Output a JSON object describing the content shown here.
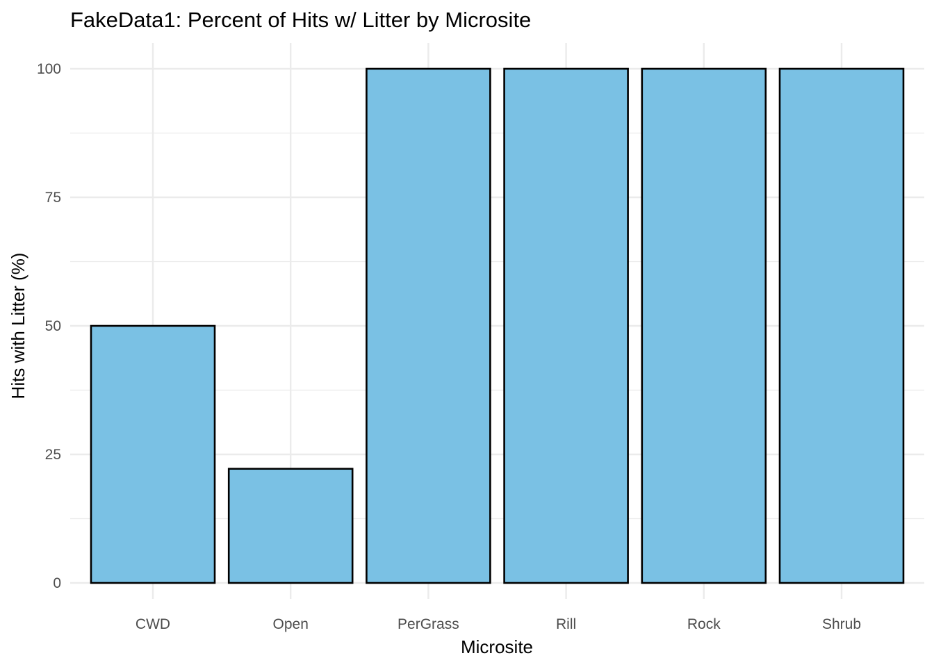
{
  "chart_data": {
    "type": "bar",
    "title": "FakeData1: Percent of Hits w/ Litter by Microsite",
    "xlabel": "Microsite",
    "ylabel": "Hits with Litter (%)",
    "categories": [
      "CWD",
      "Open",
      "PerGrass",
      "Rill",
      "Rock",
      "Shrub"
    ],
    "values": [
      50,
      22.2,
      100,
      100,
      100,
      100
    ],
    "ylim": [
      0,
      100
    ],
    "yticks": [
      0,
      25,
      50,
      75,
      100
    ],
    "grid": true,
    "legend": "none",
    "bar_color": "#7AC1E4",
    "bar_outline_color": "#000000"
  }
}
